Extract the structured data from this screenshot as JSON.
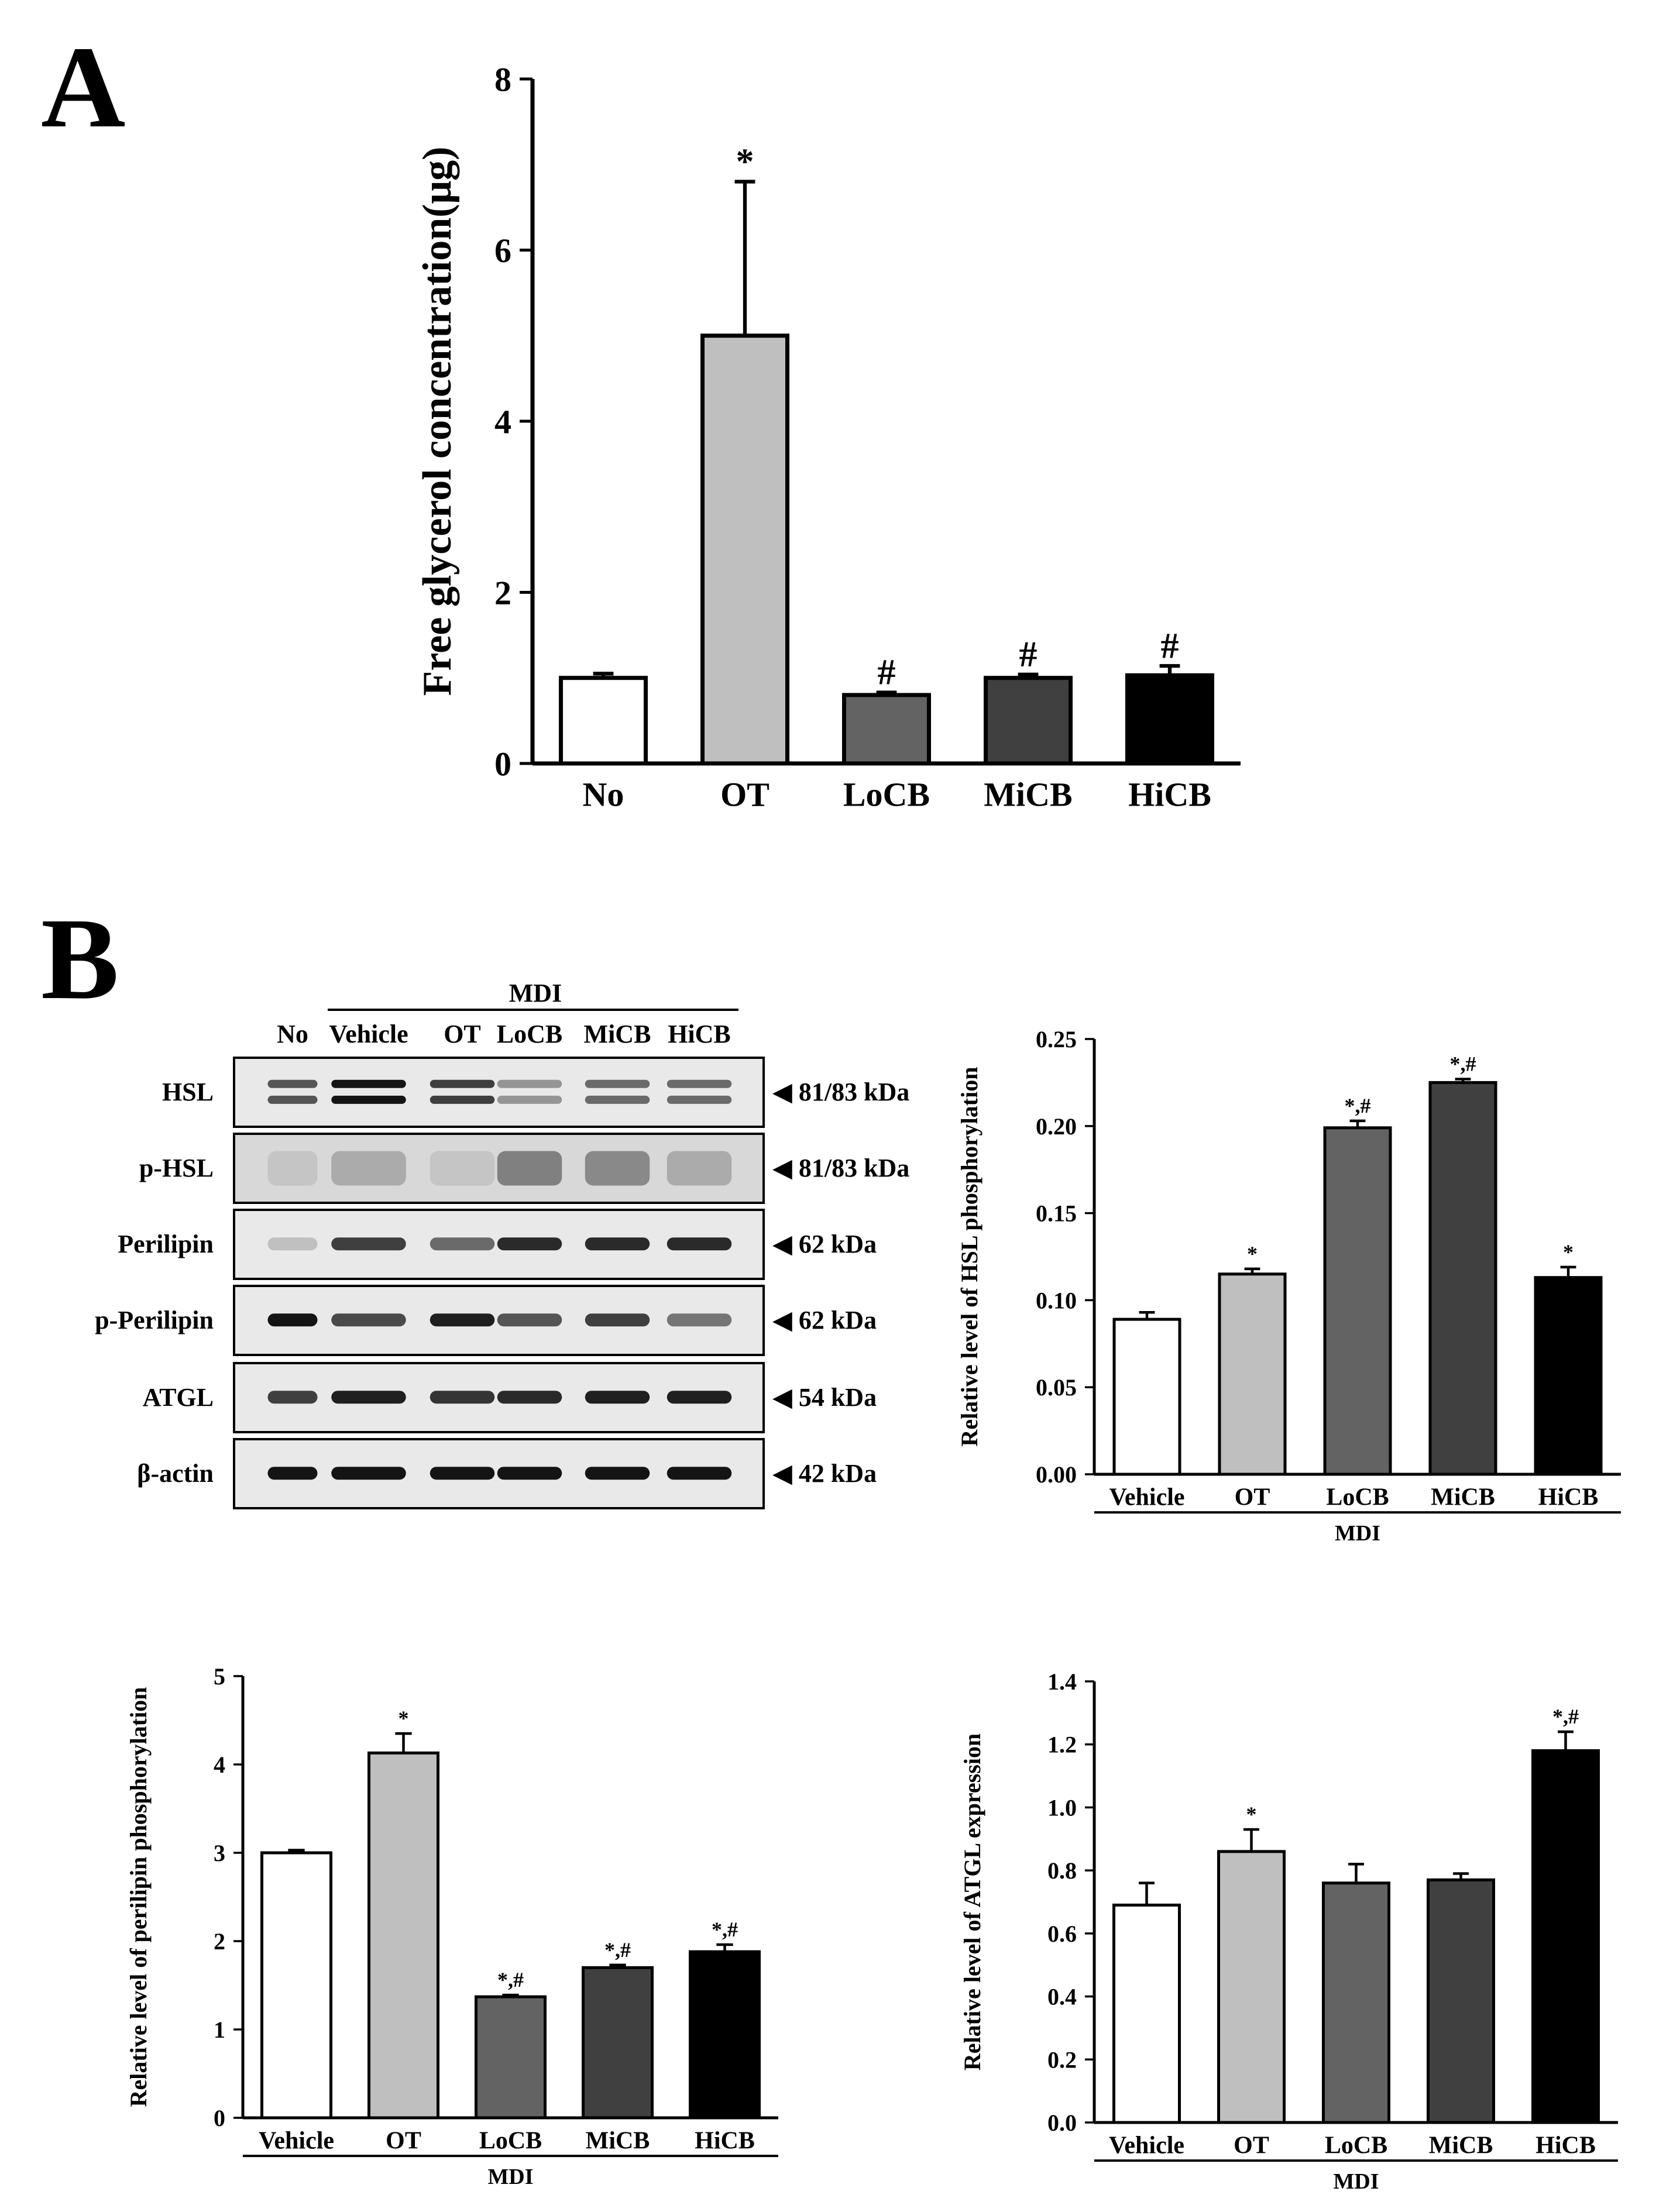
{
  "panels": {
    "a_label": "A",
    "b_label": "B"
  },
  "colors": {
    "No": "#ffffff",
    "Vehicle": "#ffffff",
    "OT": "#bfbfbf",
    "LoCB": "#636363",
    "MiCB": "#404040",
    "HiCB": "#000000",
    "axis": "#000000"
  },
  "western_blot": {
    "group_label": "MDI",
    "lanes": [
      "No",
      "Vehicle",
      "OT",
      "LoCB",
      "MiCB",
      "HiCB"
    ],
    "rows": [
      {
        "protein": "HSL",
        "size": "◀ 81/83 kDa",
        "pattern": "doublet",
        "intensity": [
          0.7,
          1.0,
          0.8,
          0.4,
          0.6,
          0.6
        ]
      },
      {
        "protein": "p-HSL",
        "size": "◀ 81/83 kDa",
        "pattern": "smear",
        "intensity": [
          0.2,
          0.35,
          0.2,
          0.6,
          0.55,
          0.35
        ]
      },
      {
        "protein": "Perilipin",
        "size": "◀ 62 kDa",
        "pattern": "single",
        "intensity": [
          0.2,
          0.8,
          0.6,
          0.9,
          0.9,
          0.9
        ]
      },
      {
        "protein": "p-Perilipin",
        "size": "◀ 62 kDa",
        "pattern": "single",
        "intensity": [
          1.0,
          0.75,
          0.95,
          0.7,
          0.8,
          0.55
        ]
      },
      {
        "protein": "ATGL",
        "size": "◀ 54 kDa",
        "pattern": "single",
        "intensity": [
          0.8,
          0.95,
          0.85,
          0.9,
          0.95,
          0.95
        ]
      },
      {
        "protein": "β-actin",
        "size": "◀ 42 kDa",
        "pattern": "single",
        "intensity": [
          1.0,
          1.0,
          1.0,
          1.0,
          1.0,
          1.0
        ]
      }
    ]
  },
  "chart_data": [
    {
      "type": "bar",
      "categories": [
        "No",
        "OT",
        "LoCB",
        "MiCB",
        "HiCB"
      ],
      "values": [
        1.0,
        5.0,
        0.8,
        1.0,
        1.03
      ],
      "errors": [
        0.05,
        1.8,
        0.03,
        0.04,
        0.11
      ],
      "annotations": [
        "",
        "*",
        "#",
        "#",
        "#"
      ],
      "title": "",
      "xlabel": "",
      "group_label": "",
      "ylabel": "Free glycerol concentration(μg)",
      "ylim": [
        0,
        8
      ],
      "yticks": [
        "0",
        "2",
        "4",
        "6",
        "8"
      ],
      "grid": false
    },
    {
      "type": "bar",
      "categories": [
        "Vehicle",
        "OT",
        "LoCB",
        "MiCB",
        "HiCB"
      ],
      "values": [
        0.089,
        0.115,
        0.199,
        0.225,
        0.113
      ],
      "errors": [
        0.004,
        0.003,
        0.004,
        0.002,
        0.006
      ],
      "annotations": [
        "",
        "*",
        "*,#",
        "*,#",
        "*"
      ],
      "title": "",
      "xlabel": "",
      "group_label": "MDI",
      "ylabel": "Relative level of HSL phosphorylation",
      "ylim": [
        0,
        0.25
      ],
      "yticks": [
        "0.00",
        "0.05",
        "0.10",
        "0.15",
        "0.20",
        "0.25"
      ],
      "grid": false
    },
    {
      "type": "bar",
      "categories": [
        "Vehicle",
        "OT",
        "LoCB",
        "MiCB",
        "HiCB"
      ],
      "values": [
        3.0,
        4.13,
        1.37,
        1.7,
        1.88
      ],
      "errors": [
        0.03,
        0.22,
        0.02,
        0.03,
        0.08
      ],
      "annotations": [
        "",
        "*",
        "*,#",
        "*,#",
        "*,#"
      ],
      "title": "",
      "xlabel": "",
      "group_label": "MDI",
      "ylabel": "Relative level of perilipin phosphorylation",
      "ylim": [
        0,
        5
      ],
      "yticks": [
        "0",
        "1",
        "2",
        "3",
        "4",
        "5"
      ],
      "grid": false
    },
    {
      "type": "bar",
      "categories": [
        "Vehicle",
        "OT",
        "LoCB",
        "MiCB",
        "HiCB"
      ],
      "values": [
        0.69,
        0.86,
        0.76,
        0.77,
        1.18
      ],
      "errors": [
        0.07,
        0.07,
        0.06,
        0.02,
        0.06
      ],
      "annotations": [
        "",
        "*",
        "",
        "",
        "*,#"
      ],
      "title": "",
      "xlabel": "",
      "group_label": "MDI",
      "ylabel": "Relative level of ATGL expression",
      "ylim": [
        0,
        1.4
      ],
      "yticks": [
        "0.0",
        "0.2",
        "0.4",
        "0.6",
        "0.8",
        "1.0",
        "1.2",
        "1.4"
      ],
      "grid": false
    }
  ]
}
